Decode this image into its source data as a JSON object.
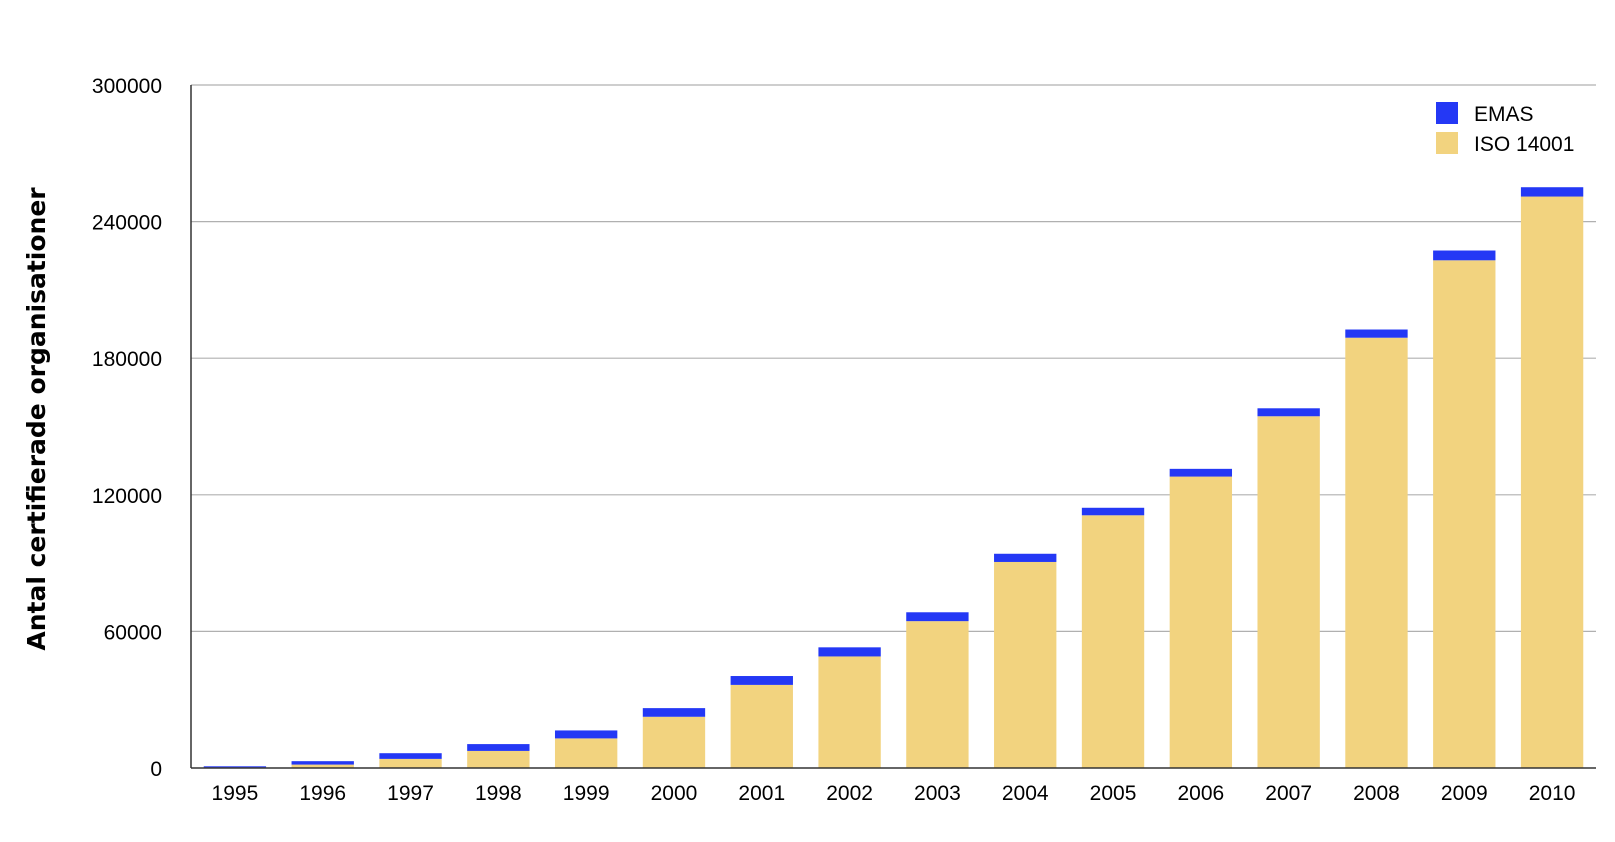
{
  "chart_data": {
    "type": "bar",
    "stacked": true,
    "title": "",
    "xlabel": "",
    "ylabel": "Antal certifierade organisationer",
    "categories": [
      "1995",
      "1996",
      "1997",
      "1998",
      "1999",
      "2000",
      "2001",
      "2002",
      "2003",
      "2004",
      "2005",
      "2006",
      "2007",
      "2008",
      "2009",
      "2010"
    ],
    "series": [
      {
        "name": "ISO 14001",
        "color": "#F2D37F",
        "values": [
          250,
          1500,
          4000,
          7500,
          13000,
          22500,
          36500,
          49000,
          64500,
          90500,
          111000,
          128000,
          154500,
          189000,
          223000,
          251000
        ]
      },
      {
        "name": "EMAS",
        "color": "#2438F5",
        "values": [
          500,
          1500,
          2500,
          3000,
          3500,
          3800,
          3900,
          4000,
          3900,
          3600,
          3300,
          3400,
          3500,
          3600,
          4300,
          4100
        ]
      }
    ],
    "ylim": [
      0,
      300000
    ],
    "yticks": [
      "0",
      "60000",
      "120000",
      "180000",
      "240000",
      "300000"
    ],
    "grid": true,
    "legend_position": "top-right",
    "legend": [
      "EMAS",
      "ISO 14001"
    ]
  }
}
